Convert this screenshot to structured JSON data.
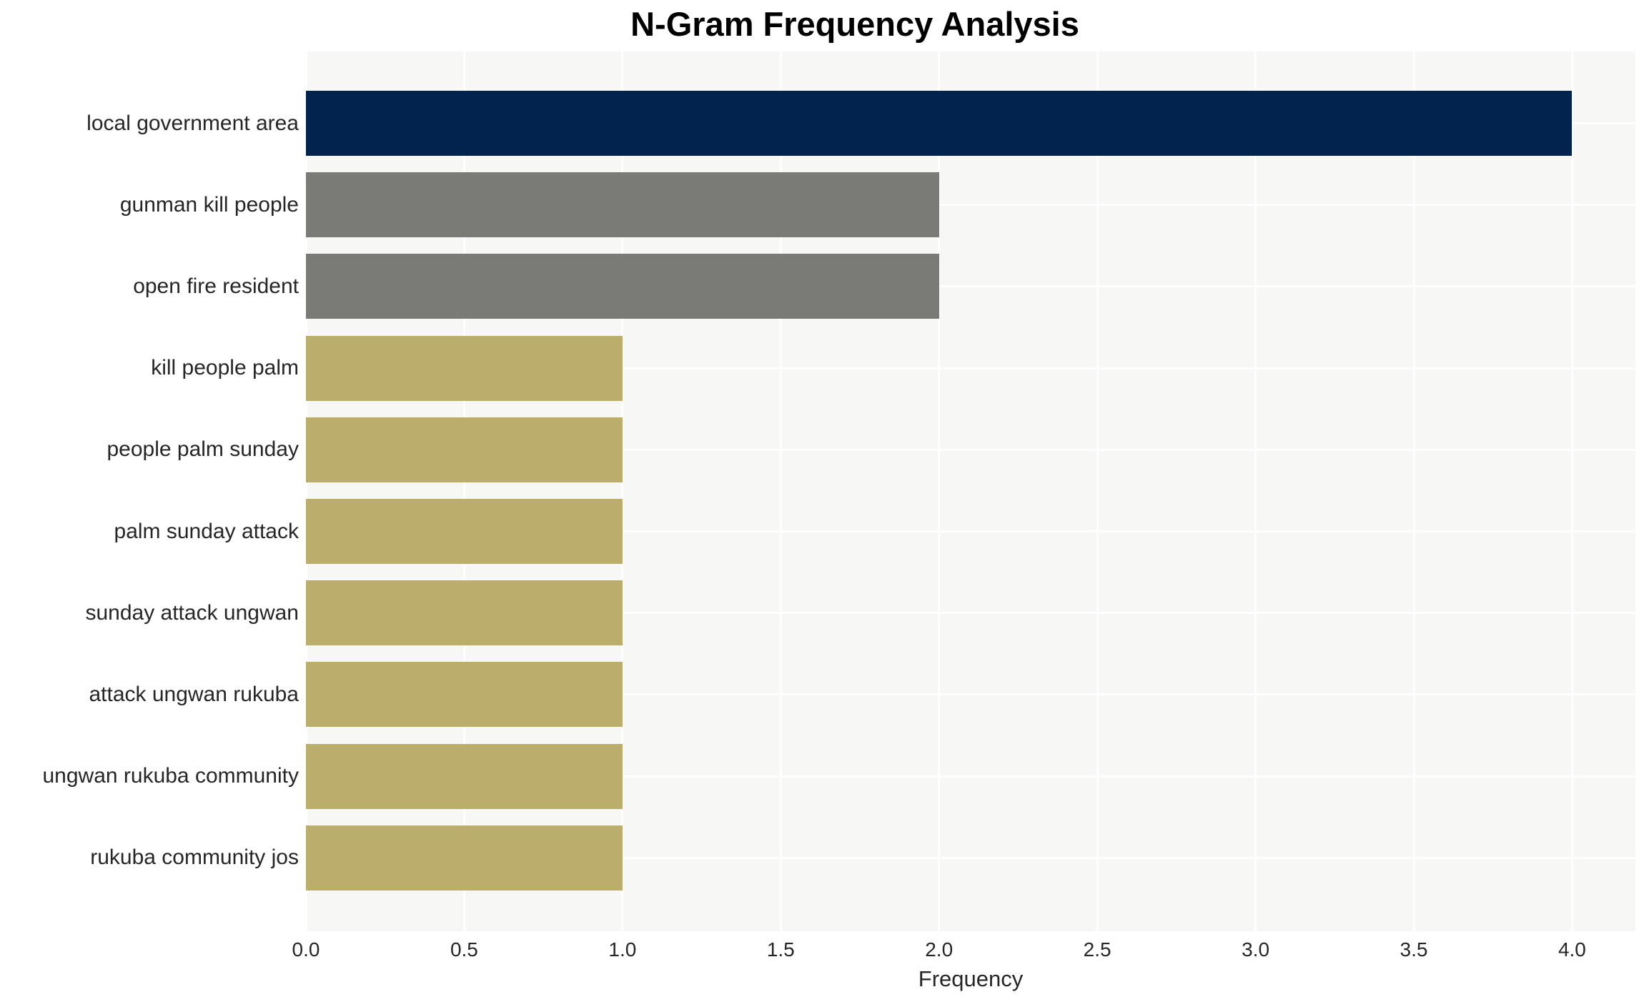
{
  "title": "N-Gram Frequency Analysis",
  "chart_data": {
    "type": "bar",
    "orientation": "horizontal",
    "title": "N-Gram Frequency Analysis",
    "xlabel": "Frequency",
    "ylabel": "",
    "categories": [
      "local government area",
      "gunman kill people",
      "open fire resident",
      "kill people palm",
      "people palm sunday",
      "palm sunday attack",
      "sunday attack ungwan",
      "attack ungwan rukuba",
      "ungwan rukuba community",
      "rukuba community jos"
    ],
    "values": [
      4,
      2,
      2,
      1,
      1,
      1,
      1,
      1,
      1,
      1
    ],
    "bar_colors": [
      "#02234d",
      "#7a7a77",
      "#7a7a77",
      "#bbad6c",
      "#bbad6c",
      "#bbad6c",
      "#bbad6c",
      "#bbad6c",
      "#bbad6c",
      "#bbad6c"
    ],
    "xlim": [
      0,
      4.2
    ],
    "xticks": [
      "0.0",
      "0.5",
      "1.0",
      "1.5",
      "2.0",
      "2.5",
      "3.0",
      "3.5",
      "4.0"
    ],
    "xtick_values": [
      0,
      0.5,
      1,
      1.5,
      2,
      2.5,
      3,
      3.5,
      4
    ],
    "grid": true,
    "grid_color": "#ffffff",
    "plot_background": "#f7f7f5",
    "figure_background": "#ffffff",
    "legend": false,
    "text_color": "#262626",
    "title_color": "#000000"
  }
}
